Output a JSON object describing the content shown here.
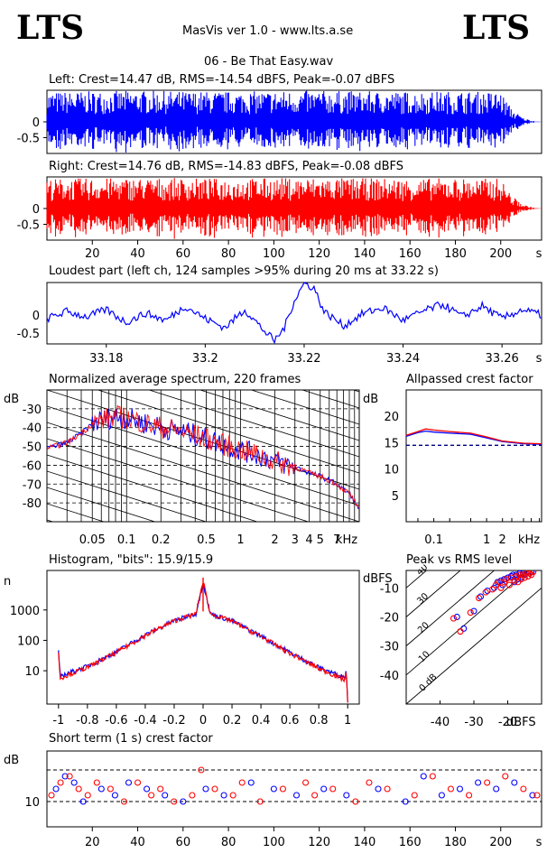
{
  "header": {
    "logo_left": "LTS",
    "logo_right": "LTS",
    "app_title": "MasVis ver 1.0 - www.lts.a.se",
    "track_name": "06 - Be That Easy.wav"
  },
  "colors": {
    "left": "#0000ff",
    "right": "#ff0000",
    "threshold": "#000080"
  },
  "chart_data": [
    {
      "id": "left-waveform",
      "type": "area",
      "title": "Left: Crest=14.47 dB, RMS=-14.54 dBFS, Peak=-0.07 dBFS",
      "xlim": [
        0,
        218
      ],
      "ylim": [
        -1,
        1
      ],
      "yticks": [
        0,
        -0.5
      ],
      "ytick_labels": [
        "0",
        "-0.5"
      ],
      "envelope": {
        "x": [
          0,
          20,
          40,
          60,
          80,
          100,
          120,
          140,
          160,
          180,
          200,
          205,
          210,
          215,
          218
        ],
        "peak": [
          0.95,
          0.97,
          0.99,
          0.97,
          0.96,
          0.98,
          0.99,
          0.97,
          0.96,
          0.97,
          0.95,
          0.4,
          0.12,
          0.02,
          0
        ]
      },
      "series": [
        {
          "name": "left",
          "color": "#0000ff"
        }
      ]
    },
    {
      "id": "right-waveform",
      "type": "area",
      "title": "Right: Crest=14.76 dB, RMS=-14.83 dBFS, Peak=-0.08 dBFS",
      "xlim": [
        0,
        218
      ],
      "ylim": [
        -1,
        1
      ],
      "yticks": [
        0,
        -0.5
      ],
      "ytick_labels": [
        "0",
        "-0.5"
      ],
      "xticks": [
        20,
        40,
        60,
        80,
        100,
        120,
        140,
        160,
        180,
        200
      ],
      "xtick_labels": [
        "20",
        "40",
        "60",
        "80",
        "100",
        "120",
        "140",
        "160",
        "180",
        "200",
        "s"
      ],
      "envelope": {
        "x": [
          0,
          20,
          40,
          60,
          80,
          100,
          120,
          140,
          160,
          180,
          200,
          205,
          210,
          215,
          218
        ],
        "peak": [
          0.95,
          0.96,
          0.97,
          0.96,
          0.95,
          0.97,
          0.98,
          0.96,
          0.95,
          0.96,
          0.95,
          0.4,
          0.12,
          0.02,
          0
        ]
      },
      "series": [
        {
          "name": "right",
          "color": "#ff0000"
        }
      ]
    },
    {
      "id": "loudest-part",
      "type": "line",
      "title": "Loudest part (left  ch, 124 samples >95% during 20 ms at 33.22 s)",
      "xlim": [
        33.168,
        33.268
      ],
      "ylim": [
        -0.8,
        0.9
      ],
      "yticks": [
        0,
        -0.5
      ],
      "ytick_labels": [
        "0",
        "-0.5"
      ],
      "xticks": [
        33.18,
        33.2,
        33.22,
        33.24,
        33.26
      ],
      "xtick_labels": [
        "33.18",
        "33.2",
        "33.22",
        "33.24",
        "33.26",
        "s"
      ],
      "x": [
        33.168,
        33.172,
        33.176,
        33.18,
        33.184,
        33.188,
        33.192,
        33.196,
        33.2,
        33.204,
        33.208,
        33.212,
        33.214,
        33.216,
        33.218,
        33.22,
        33.222,
        33.224,
        33.228,
        33.232,
        33.236,
        33.24,
        33.244,
        33.248,
        33.252,
        33.256,
        33.26,
        33.264,
        33.268
      ],
      "y": [
        -0.1,
        0.1,
        -0.05,
        0.15,
        -0.2,
        0.05,
        -0.15,
        0.25,
        -0.1,
        -0.35,
        0.15,
        -0.45,
        -0.72,
        -0.35,
        0.4,
        0.88,
        0.75,
        0.1,
        -0.3,
        0.05,
        0.2,
        -0.15,
        0.1,
        0.3,
        -0.05,
        0.25,
        -0.1,
        0.15,
        0.0
      ],
      "series": [
        {
          "name": "left",
          "color": "#0000ff"
        }
      ]
    },
    {
      "id": "avg-spectrum",
      "type": "line",
      "title": "Normalized average spectrum, 220 frames",
      "ylabel": "dB",
      "xscale": "log",
      "xlim": [
        0.02,
        11
      ],
      "ylim": [
        -90,
        -20
      ],
      "yticks": [
        -30,
        -40,
        -50,
        -60,
        -70,
        -80
      ],
      "ytick_labels": [
        "-30",
        "-40",
        "-50",
        "-60",
        "-70",
        "-80"
      ],
      "xtick_labels": [
        "0.05",
        "0.1",
        "0.2",
        "0.5",
        "1",
        "2",
        "3",
        "4",
        "5",
        "7",
        "kHz"
      ],
      "xtick_values": [
        0.05,
        0.1,
        0.2,
        0.5,
        1,
        2,
        3,
        4,
        5,
        7
      ],
      "x": [
        0.02,
        0.03,
        0.04,
        0.05,
        0.06,
        0.08,
        0.1,
        0.15,
        0.2,
        0.3,
        0.4,
        0.5,
        0.7,
        1,
        1.5,
        2,
        3,
        4,
        5,
        6,
        7,
        8,
        9,
        10,
        11
      ],
      "series": [
        {
          "name": "left",
          "color": "#0000ff",
          "values": [
            -51,
            -48,
            -43,
            -38,
            -36,
            -34,
            -35,
            -38,
            -40,
            -42,
            -44,
            -46,
            -49,
            -52,
            -55,
            -58,
            -61,
            -64,
            -66,
            -68,
            -70,
            -73,
            -75,
            -79,
            -85
          ]
        },
        {
          "name": "right",
          "color": "#ff0000",
          "values": [
            -51,
            -48,
            -43,
            -38,
            -36,
            -34,
            -35,
            -38,
            -40,
            -42,
            -44,
            -46,
            -49,
            -52,
            -55,
            -58,
            -61,
            -64,
            -66,
            -68,
            -70,
            -73,
            -75,
            -79,
            -85
          ]
        }
      ]
    },
    {
      "id": "allpassed-crest",
      "type": "line",
      "title": "Allpassed crest factor",
      "ylabel": "dB",
      "xscale": "log",
      "xlim": [
        0.03,
        11
      ],
      "ylim": [
        0,
        25
      ],
      "yticks": [
        5,
        10,
        15,
        20
      ],
      "ytick_labels": [
        "5",
        "10",
        "15",
        "20"
      ],
      "xtick_values": [
        0.1,
        1,
        2
      ],
      "xtick_labels": [
        "0.1",
        "1",
        "2",
        "kHz"
      ],
      "threshold": 14.5,
      "x": [
        0.03,
        0.05,
        0.07,
        0.1,
        0.2,
        0.5,
        1,
        2,
        5,
        11
      ],
      "series": [
        {
          "name": "left",
          "color": "#0000ff",
          "values": [
            16.2,
            16.9,
            17.2,
            17.0,
            16.8,
            16.6,
            15.9,
            15.2,
            14.8,
            14.7
          ]
        },
        {
          "name": "right",
          "color": "#ff0000",
          "values": [
            16.4,
            17.1,
            17.6,
            17.4,
            17.1,
            16.8,
            16.1,
            15.3,
            14.9,
            14.8
          ]
        }
      ]
    },
    {
      "id": "histogram",
      "type": "line",
      "title": "Histogram, \"bits\": 15.9/15.9",
      "ylabel": "n",
      "yscale": "log",
      "xlim": [
        -1.08,
        1.08
      ],
      "ylim": [
        0.8,
        20000
      ],
      "yticks": [
        10,
        100,
        1000
      ],
      "ytick_labels": [
        "10",
        "100",
        "1000"
      ],
      "xtick_values": [
        -1,
        -0.8,
        -0.6,
        -0.4,
        -0.2,
        0,
        0.2,
        0.4,
        0.6,
        0.8,
        1
      ],
      "xtick_labels": [
        "-1",
        "-0.8",
        "-0.6",
        "-0.4",
        "-0.2",
        "0",
        "0.2",
        "0.4",
        "0.6",
        "0.8",
        "1"
      ],
      "x": [
        -1,
        -0.99,
        -0.98,
        -0.8,
        -0.6,
        -0.4,
        -0.2,
        -0.05,
        0,
        0.05,
        0.2,
        0.4,
        0.6,
        0.8,
        0.98,
        0.99,
        1
      ],
      "series": [
        {
          "name": "left",
          "color": "#0000ff",
          "values": [
            45,
            7,
            7,
            14,
            42,
            150,
            450,
            760,
            8000,
            760,
            440,
            140,
            40,
            13,
            6,
            12,
            1
          ]
        },
        {
          "name": "right",
          "color": "#ff0000",
          "values": [
            40,
            6,
            6,
            13,
            40,
            145,
            440,
            750,
            9000,
            750,
            430,
            135,
            38,
            12,
            5,
            10,
            1
          ]
        }
      ]
    },
    {
      "id": "peak-vs-rms",
      "type": "scatter",
      "title": "Peak vs RMS level",
      "ylabel": "dBFS",
      "xlabel": "dBFS",
      "xlim": [
        -50,
        -10
      ],
      "ylim": [
        -50,
        -4
      ],
      "xticks": [
        -40,
        -30,
        -20
      ],
      "xtick_labels": [
        "-40",
        "-30",
        "-20"
      ],
      "yticks": [
        -10,
        -20,
        -30,
        -40
      ],
      "ytick_labels": [
        "-10",
        "-20",
        "-30",
        "-40"
      ],
      "diagonal_labels": [
        "40",
        "30",
        "20",
        "10",
        "0 dB"
      ],
      "series": [
        {
          "name": "left",
          "color": "#0000ff",
          "x": [
            -35,
            -33,
            -30,
            -28,
            -26,
            -24,
            -23,
            -22,
            -21.5,
            -21,
            -20,
            -19,
            -18.5,
            -18,
            -17.5,
            -17,
            -16.5,
            -16,
            -15.5,
            -15,
            -14.5,
            -14,
            -13.5,
            -13,
            -12.5
          ],
          "y": [
            -20,
            -24,
            -18,
            -13,
            -11,
            -10,
            -8,
            -7.5,
            -9,
            -7,
            -6.5,
            -6,
            -5.5,
            -8,
            -5.5,
            -7,
            -5,
            -6.5,
            -5,
            -5.5,
            -5,
            -4.5,
            -5,
            -4.5,
            -4.5
          ]
        },
        {
          "name": "right",
          "color": "#ff0000",
          "x": [
            -36,
            -34,
            -31,
            -28.5,
            -26.5,
            -24.5,
            -23.5,
            -22.5,
            -22,
            -21,
            -20.5,
            -19.5,
            -19,
            -18,
            -17.5,
            -17,
            -16.5,
            -16,
            -15.5,
            -15,
            -14.5,
            -14,
            -13.5,
            -13,
            -12.5
          ],
          "y": [
            -20.5,
            -25,
            -18.5,
            -13.5,
            -11.5,
            -10.5,
            -9,
            -8,
            -10,
            -8,
            -7,
            -9,
            -6.5,
            -7.5,
            -6,
            -8,
            -5.5,
            -7,
            -5.5,
            -6.5,
            -5,
            -6,
            -5,
            -5.5,
            -4.5
          ]
        }
      ]
    },
    {
      "id": "short-term-crest",
      "type": "scatter",
      "title": "Short term (1 s) crest factor",
      "ylabel": "dB",
      "xlim": [
        0,
        218
      ],
      "ylim": [
        6,
        18
      ],
      "yticks": [
        10
      ],
      "ytick_labels": [
        "10"
      ],
      "dashed_levels": [
        10,
        15
      ],
      "xticks": [
        20,
        40,
        60,
        80,
        100,
        120,
        140,
        160,
        180,
        200
      ],
      "xtick_labels": [
        "20",
        "40",
        "60",
        "80",
        "100",
        "120",
        "140",
        "160",
        "180",
        "200",
        "s"
      ],
      "series": [
        {
          "name": "left",
          "color": "#0000ff",
          "x": [
            4,
            8,
            12,
            16,
            24,
            30,
            36,
            44,
            52,
            60,
            70,
            78,
            90,
            100,
            110,
            122,
            132,
            146,
            158,
            166,
            174,
            182,
            190,
            198,
            206,
            214
          ],
          "y": [
            12,
            14,
            13,
            10,
            12,
            11,
            13,
            12,
            11,
            10,
            12,
            11,
            13,
            12,
            11,
            12,
            11,
            12,
            10,
            14,
            11,
            12,
            13,
            12,
            13,
            11
          ]
        },
        {
          "name": "right",
          "color": "#ff0000",
          "x": [
            2,
            6,
            10,
            14,
            18,
            22,
            28,
            34,
            40,
            46,
            50,
            56,
            64,
            68,
            74,
            82,
            86,
            94,
            104,
            114,
            118,
            126,
            136,
            142,
            150,
            162,
            170,
            178,
            186,
            194,
            202,
            210,
            216
          ],
          "y": [
            11,
            13,
            14,
            12,
            11,
            13,
            12,
            10,
            13,
            11,
            12,
            10,
            11,
            15,
            12,
            11,
            13,
            10,
            12,
            13,
            11,
            12,
            10,
            13,
            12,
            11,
            14,
            12,
            11,
            13,
            14,
            12,
            11
          ]
        }
      ]
    }
  ]
}
